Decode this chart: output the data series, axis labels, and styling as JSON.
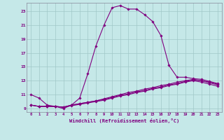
{
  "xlabel": "Windchill (Refroidissement éolien,°C)",
  "ylabel": "",
  "background_color": "#c5e8e8",
  "line_color": "#800080",
  "grid_color": "#a0c8c8",
  "spine_color": "#888899",
  "xlim": [
    -0.5,
    23.5
  ],
  "ylim": [
    8.5,
    24.2
  ],
  "xticks": [
    0,
    1,
    2,
    3,
    4,
    5,
    6,
    7,
    8,
    9,
    10,
    11,
    12,
    13,
    14,
    15,
    16,
    17,
    18,
    19,
    20,
    21,
    22,
    23
  ],
  "yticks": [
    9,
    11,
    13,
    15,
    17,
    19,
    21,
    23
  ],
  "line1_x": [
    0,
    1,
    2,
    3,
    4,
    5,
    6,
    7,
    8,
    9,
    10,
    11,
    12,
    13,
    14,
    15,
    16,
    17,
    18,
    19,
    20,
    21,
    22,
    23
  ],
  "line1_y": [
    11.0,
    10.5,
    9.5,
    9.3,
    9.0,
    9.5,
    10.5,
    14.0,
    18.0,
    21.0,
    23.5,
    23.8,
    23.3,
    23.3,
    22.5,
    21.5,
    19.5,
    15.2,
    13.5,
    13.5,
    13.3,
    13.2,
    12.9,
    12.6
  ],
  "line2_x": [
    0,
    1,
    2,
    3,
    4,
    5,
    6,
    7,
    8,
    9,
    10,
    11,
    12,
    13,
    14,
    15,
    16,
    17,
    18,
    19,
    20,
    21,
    22,
    23
  ],
  "line2_y": [
    9.5,
    9.3,
    9.3,
    9.3,
    9.2,
    9.5,
    9.7,
    9.9,
    10.1,
    10.4,
    10.7,
    11.0,
    11.3,
    11.5,
    11.8,
    12.0,
    12.3,
    12.5,
    12.8,
    13.0,
    13.2,
    13.0,
    12.8,
    12.5
  ],
  "line3_x": [
    0,
    1,
    2,
    3,
    4,
    5,
    6,
    7,
    8,
    9,
    10,
    11,
    12,
    13,
    14,
    15,
    16,
    17,
    18,
    19,
    20,
    21,
    22,
    23
  ],
  "line3_y": [
    9.5,
    9.3,
    9.3,
    9.3,
    9.2,
    9.5,
    9.7,
    9.9,
    10.1,
    10.3,
    10.6,
    10.9,
    11.1,
    11.4,
    11.6,
    11.9,
    12.1,
    12.4,
    12.6,
    12.9,
    13.1,
    13.0,
    12.7,
    12.4
  ],
  "line4_x": [
    0,
    1,
    2,
    3,
    4,
    5,
    6,
    7,
    8,
    9,
    10,
    11,
    12,
    13,
    14,
    15,
    16,
    17,
    18,
    19,
    20,
    21,
    22,
    23
  ],
  "line4_y": [
    9.5,
    9.3,
    9.3,
    9.3,
    9.2,
    9.4,
    9.6,
    9.8,
    10.0,
    10.2,
    10.5,
    10.8,
    11.0,
    11.3,
    11.5,
    11.8,
    12.0,
    12.3,
    12.5,
    12.8,
    13.0,
    12.8,
    12.5,
    12.2
  ]
}
